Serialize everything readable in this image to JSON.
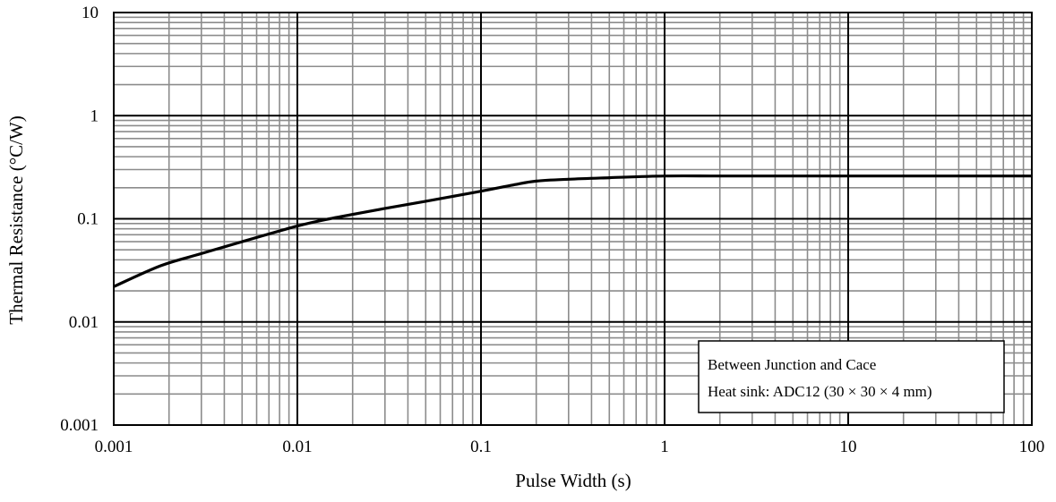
{
  "chart_data": {
    "type": "line",
    "xscale": "log",
    "yscale": "log",
    "xlim": [
      0.001,
      100
    ],
    "ylim": [
      0.001,
      10
    ],
    "xlabel": "Pulse Width (s)",
    "ylabel": "Thermal Resistance (°C/W)",
    "x_ticks": [
      "0.001",
      "0.01",
      "0.1",
      "1",
      "10",
      "100"
    ],
    "y_ticks": [
      "0.001",
      "0.01",
      "0.1",
      "1",
      "10"
    ],
    "grid": true,
    "series": [
      {
        "x": [
          0.001,
          0.0018,
          0.003,
          0.005,
          0.01,
          0.015,
          0.03,
          0.05,
          0.1,
          0.15,
          0.2,
          0.3,
          0.5,
          1,
          2,
          5,
          10,
          100
        ],
        "y": [
          0.022,
          0.035,
          0.046,
          0.06,
          0.085,
          0.1,
          0.126,
          0.148,
          0.185,
          0.213,
          0.232,
          0.242,
          0.25,
          0.26,
          0.26,
          0.26,
          0.26,
          0.26
        ]
      }
    ],
    "annotations": [
      "Between Junction and Cace",
      "Heat sink: ADC12 (30 × 30 × 4 mm)"
    ]
  },
  "colors": {
    "line": "#000000",
    "grid_minor": "#8c8c8c",
    "grid_major": "#000000"
  }
}
